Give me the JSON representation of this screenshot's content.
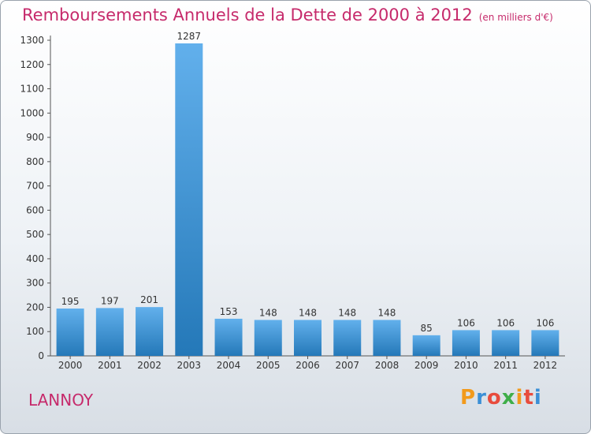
{
  "header": {
    "title": "Remboursements Annuels de la Dette de 2000 à 2012",
    "subtitle": "(en milliers d'€)"
  },
  "footer": {
    "location": "LANNOY",
    "brand": "Proxiti"
  },
  "colors": {
    "title": "#c62a6b",
    "bar_top": "#62b0ec",
    "bar_bottom": "#2478b8"
  },
  "chart_data": {
    "type": "bar",
    "title": "Remboursements Annuels de la Dette de 2000 à 2012",
    "subtitle": "(en milliers d'€)",
    "categories": [
      "2000",
      "2001",
      "2002",
      "2003",
      "2004",
      "2005",
      "2006",
      "2007",
      "2008",
      "2009",
      "2010",
      "2011",
      "2012"
    ],
    "values": [
      195,
      197,
      201,
      1287,
      153,
      148,
      148,
      148,
      148,
      85,
      106,
      106,
      106
    ],
    "ylim": [
      0,
      1300
    ],
    "yticks": [
      0,
      100,
      200,
      300,
      400,
      500,
      600,
      700,
      800,
      900,
      1000,
      1100,
      1200,
      1300
    ],
    "grid": false,
    "legend": "none"
  }
}
